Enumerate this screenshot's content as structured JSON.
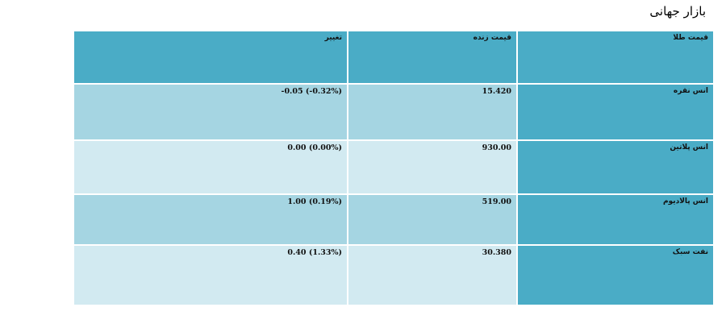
{
  "page": {
    "title": "بازار جهانی"
  },
  "table": {
    "headers": {
      "name": "قیمت طلا",
      "price": "قیمت زنده",
      "change": "تغییر"
    },
    "rows": [
      {
        "name": "انس نقره",
        "price": "15.420",
        "change": "-0.05 (-0.32%)"
      },
      {
        "name": "انس پلاتین",
        "price": "930.00",
        "change": "0.00 (0.00%)"
      },
      {
        "name": "انس پالادیوم",
        "price": "519.00",
        "change": "1.00 (0.19%)"
      },
      {
        "name": "نفت سبک",
        "price": "30.380",
        "change": "0.40 (1.33%)"
      }
    ]
  },
  "colors": {
    "header": "#4aacc6",
    "row_dark": "#a5d5e2",
    "row_light": "#d2eaf1"
  }
}
